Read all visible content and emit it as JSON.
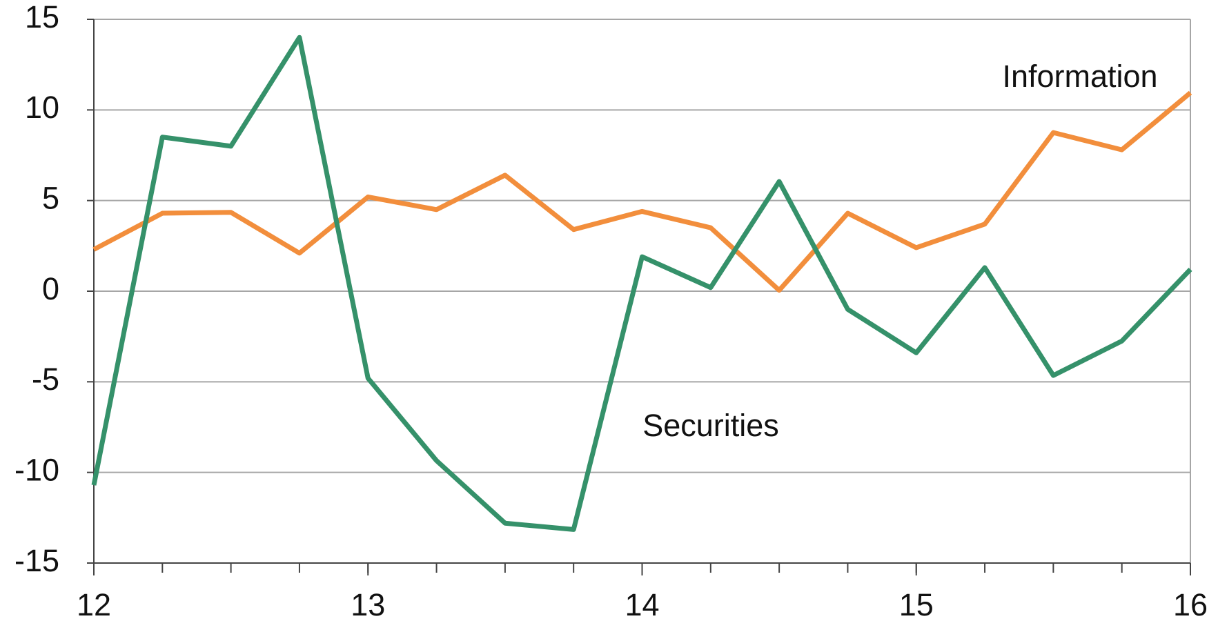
{
  "chart_data": {
    "type": "line",
    "x": [
      12,
      12.25,
      12.5,
      12.75,
      13,
      13.25,
      13.5,
      13.75,
      14,
      14.25,
      14.5,
      14.75,
      15,
      15.25,
      15.5,
      15.75,
      16
    ],
    "series": [
      {
        "name": "Information",
        "color": "#f28e3c",
        "values": [
          2.3,
          4.3,
          4.35,
          2.1,
          5.2,
          4.5,
          6.4,
          3.4,
          4.4,
          3.5,
          0.05,
          4.3,
          2.4,
          3.7,
          8.75,
          7.8,
          10.95
        ]
      },
      {
        "name": "Securities",
        "color": "#35916a",
        "values": [
          -10.7,
          8.5,
          8.0,
          14.0,
          -4.8,
          -9.35,
          -12.8,
          -13.15,
          1.9,
          0.2,
          6.05,
          -1.0,
          -3.4,
          1.3,
          -4.65,
          -2.75,
          1.2
        ]
      }
    ],
    "xlim": [
      12,
      16
    ],
    "xticks": [
      12,
      13,
      14,
      15,
      16
    ],
    "ylim": [
      -15,
      15
    ],
    "yticks": [
      -15,
      -10,
      -5,
      0,
      5,
      10,
      15
    ],
    "grid": true
  }
}
